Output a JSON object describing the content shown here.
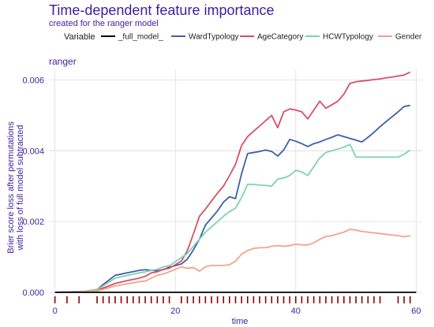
{
  "chart_data": {
    "type": "line",
    "title": "Time-dependent feature importance",
    "subtitle": "created for the ranger model",
    "facet_label": "ranger",
    "xlabel": "time",
    "ylabel_lines": [
      "Brier score loss after permutations",
      "with loss of full model subtracted"
    ],
    "legend_title": "Variable",
    "legend_position": "top",
    "xlim": [
      -1,
      61
    ],
    "ylim": [
      0,
      0.0063
    ],
    "x_ticks": [
      0,
      20,
      40,
      60
    ],
    "x_tick_labels": [
      "0",
      "20",
      "40",
      "60"
    ],
    "y_ticks": [
      0,
      0.002,
      0.004,
      0.006
    ],
    "y_tick_labels": [
      "0.000",
      "0.002",
      "0.004",
      "0.006"
    ],
    "grid": true,
    "rug_color": "#8b0000",
    "rug_times": [
      0,
      2,
      4,
      7,
      8,
      9,
      10,
      11,
      12,
      13,
      14,
      15,
      16,
      17,
      18,
      19,
      21,
      22,
      23,
      24,
      25,
      26,
      27,
      28,
      29,
      30,
      31,
      32,
      33,
      34,
      35,
      36,
      37,
      38,
      39,
      40,
      41,
      42,
      43,
      44,
      45,
      46,
      47,
      48,
      49,
      50,
      51,
      52,
      53,
      54,
      57,
      58,
      59
    ],
    "series": [
      {
        "name": "_full_model_",
        "color": "#000000",
        "x": [
          0,
          60
        ],
        "y": [
          0,
          0
        ]
      },
      {
        "name": "WardTypology",
        "color": "#3d5fa8",
        "x": [
          0,
          5,
          7,
          8,
          10,
          12,
          14,
          15,
          16,
          17,
          18,
          19,
          21,
          22,
          23,
          24,
          25,
          26,
          27,
          28,
          29,
          30,
          31,
          32,
          33,
          34,
          35,
          36,
          37,
          38,
          39,
          40,
          41,
          42,
          43,
          44,
          45,
          46,
          47,
          48,
          49,
          50,
          51,
          52,
          53,
          54,
          55,
          56,
          57,
          58,
          59
        ],
        "y": [
          0,
          3e-05,
          8e-05,
          0.00022,
          0.00048,
          0.00055,
          0.00062,
          0.00064,
          0.00062,
          0.00061,
          0.00064,
          0.00071,
          0.0008,
          0.00094,
          0.0012,
          0.0015,
          0.0019,
          0.0021,
          0.0023,
          0.00255,
          0.0027,
          0.00265,
          0.00335,
          0.00392,
          0.00395,
          0.00398,
          0.00402,
          0.00398,
          0.00385,
          0.00402,
          0.00432,
          0.00427,
          0.0042,
          0.00412,
          0.0042,
          0.00425,
          0.00432,
          0.00438,
          0.00445,
          0.0044,
          0.00435,
          0.0043,
          0.00425,
          0.00438,
          0.00452,
          0.00468,
          0.00482,
          0.00496,
          0.0051,
          0.00525,
          0.00528
        ]
      },
      {
        "name": "AgeCategory",
        "color": "#d94f66",
        "x": [
          0,
          5,
          7,
          8,
          10,
          12,
          14,
          15,
          16,
          17,
          18,
          19,
          21,
          22,
          23,
          24,
          25,
          26,
          27,
          28,
          29,
          30,
          31,
          32,
          33,
          34,
          35,
          36,
          37,
          38,
          39,
          40,
          41,
          42,
          43,
          44,
          45,
          46,
          47,
          48,
          49,
          50,
          51,
          52,
          53,
          54,
          55,
          56,
          57,
          58,
          59
        ],
        "y": [
          0,
          3e-05,
          8e-05,
          0.00012,
          0.00025,
          0.00033,
          0.0004,
          0.00045,
          0.00055,
          0.00058,
          0.00065,
          0.00068,
          0.00088,
          0.00118,
          0.00165,
          0.00215,
          0.00235,
          0.00258,
          0.0028,
          0.003,
          0.0033,
          0.00362,
          0.00415,
          0.0044,
          0.00455,
          0.0047,
          0.00485,
          0.005,
          0.00465,
          0.0051,
          0.00518,
          0.00515,
          0.0051,
          0.0049,
          0.00515,
          0.0054,
          0.0052,
          0.0053,
          0.0054,
          0.0056,
          0.0059,
          0.00595,
          0.00597,
          0.00599,
          0.00601,
          0.00603,
          0.00606,
          0.00608,
          0.00611,
          0.00614,
          0.00622
        ]
      },
      {
        "name": "HCWTypology",
        "color": "#7fd1b0",
        "x": [
          0,
          5,
          7,
          8,
          10,
          12,
          14,
          15,
          16,
          17,
          18,
          19,
          21,
          22,
          23,
          24,
          25,
          26,
          27,
          28,
          29,
          30,
          31,
          32,
          33,
          34,
          35,
          36,
          37,
          38,
          39,
          40,
          41,
          42,
          43,
          44,
          45,
          46,
          47,
          48,
          49,
          50,
          51,
          52,
          53,
          54,
          55,
          56,
          57,
          58,
          59
        ],
        "y": [
          0,
          3e-05,
          8e-05,
          0.00018,
          0.0004,
          0.00048,
          0.00055,
          0.00058,
          0.00062,
          0.00065,
          0.00072,
          0.00075,
          0.00098,
          0.0011,
          0.0013,
          0.0015,
          0.0017,
          0.00185,
          0.002,
          0.00215,
          0.00228,
          0.00238,
          0.00268,
          0.00305,
          0.00305,
          0.00303,
          0.00302,
          0.003,
          0.0032,
          0.00323,
          0.0033,
          0.00345,
          0.0034,
          0.0033,
          0.00355,
          0.0038,
          0.00395,
          0.004,
          0.00405,
          0.0041,
          0.00418,
          0.00382,
          0.00382,
          0.00382,
          0.00382,
          0.00382,
          0.00382,
          0.00382,
          0.00382,
          0.0039,
          0.00402
        ]
      },
      {
        "name": "Gender",
        "color": "#f2a48a",
        "x": [
          0,
          5,
          7,
          8,
          10,
          12,
          14,
          15,
          16,
          17,
          18,
          19,
          21,
          22,
          23,
          24,
          25,
          26,
          27,
          28,
          29,
          30,
          31,
          32,
          33,
          34,
          35,
          36,
          37,
          38,
          39,
          40,
          41,
          42,
          43,
          44,
          45,
          46,
          47,
          48,
          49,
          50,
          51,
          52,
          53,
          54,
          55,
          56,
          57,
          58,
          59
        ],
        "y": [
          0,
          2e-05,
          4e-05,
          8e-05,
          0.00018,
          0.00024,
          0.0003,
          0.00032,
          0.0004,
          0.00048,
          0.00052,
          0.00058,
          0.00072,
          0.00068,
          0.0007,
          0.0006,
          0.00072,
          0.00076,
          0.00076,
          0.00076,
          0.00078,
          0.00088,
          0.00108,
          0.00118,
          0.00124,
          0.00126,
          0.00126,
          0.0013,
          0.00132,
          0.0013,
          0.00132,
          0.00136,
          0.00134,
          0.00134,
          0.0014,
          0.0015,
          0.00158,
          0.0016,
          0.00165,
          0.0017,
          0.00178,
          0.00176,
          0.00172,
          0.0017,
          0.00168,
          0.00166,
          0.00164,
          0.00162,
          0.0016,
          0.00157,
          0.0016
        ]
      }
    ]
  }
}
